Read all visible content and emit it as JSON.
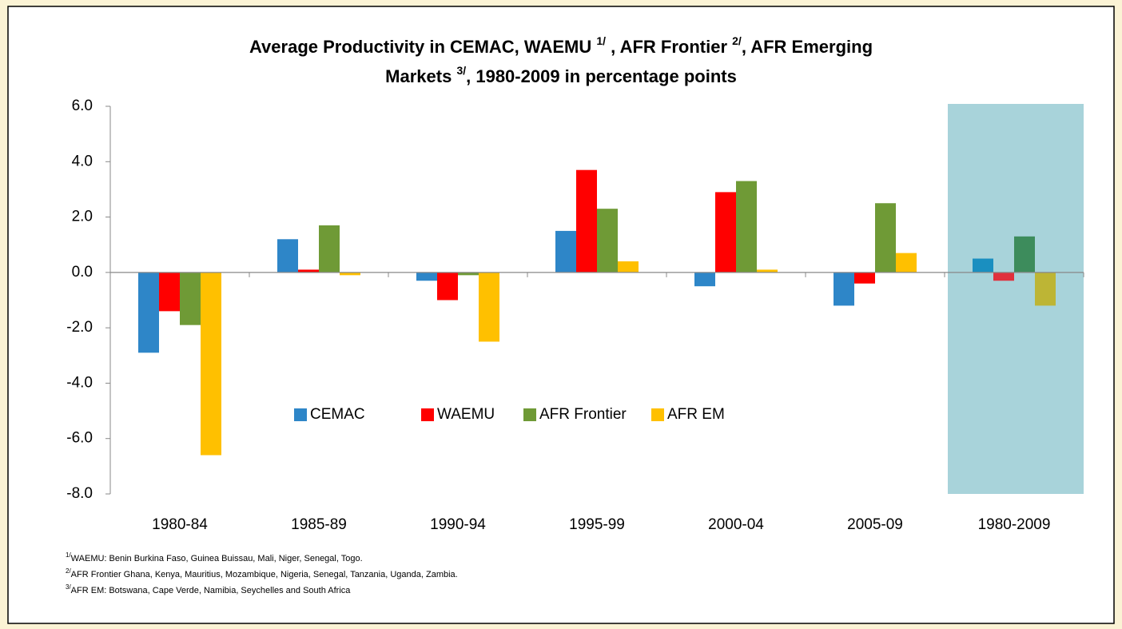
{
  "chart_data": {
    "type": "bar",
    "title_lines": [
      [
        "Average Productivity in CEMAC, WAEMU ",
        "1/",
        " , AFR Frontier ",
        "2/",
        ", AFR Emerging"
      ],
      [
        "Markets ",
        "3/",
        ", 1980-2009 in percentage points"
      ]
    ],
    "categories": [
      "1980-84",
      "1985-89",
      "1990-94",
      "1995-99",
      "2000-04",
      "2005-09",
      "1980-2009"
    ],
    "series": [
      {
        "name": "CEMAC",
        "color": "#2e86c8",
        "highlight_color": "#1a8fc0",
        "values": [
          -2.9,
          1.2,
          -0.3,
          1.5,
          -0.5,
          -1.2,
          0.5
        ]
      },
      {
        "name": "WAEMU",
        "color": "#ff0000",
        "highlight_color": "#e0303c",
        "values": [
          -1.4,
          0.1,
          -1.0,
          3.7,
          2.9,
          -0.4,
          -0.3
        ]
      },
      {
        "name": "AFR Frontier",
        "color": "#6f9a36",
        "highlight_color": "#3d8c5c",
        "values": [
          -1.9,
          1.7,
          -0.1,
          2.3,
          3.3,
          2.5,
          1.3
        ]
      },
      {
        "name": "AFR EM",
        "color": "#ffc000",
        "highlight_color": "#bdb535",
        "values": [
          -6.6,
          -0.1,
          -2.5,
          0.4,
          0.1,
          0.7,
          -1.2
        ]
      }
    ],
    "highlight_category": "1980-2009",
    "highlight_fill": "#a8d3da",
    "ylim": [
      -8,
      6
    ],
    "yticks": [
      {
        "value": -8,
        "label": "-8.0"
      },
      {
        "value": -6,
        "label": "-6.0"
      },
      {
        "value": -4,
        "label": "-4.0"
      },
      {
        "value": -2,
        "label": "-2.0"
      },
      {
        "value": 0,
        "label": "0.0"
      },
      {
        "value": 2,
        "label": "2.0"
      },
      {
        "value": 4,
        "label": "4.0"
      },
      {
        "value": 6,
        "label": "6.0"
      }
    ],
    "legend": "center",
    "notes": [
      {
        "mark": "1/",
        "text": "WAEMU: Benin Burkina Faso, Guinea Buissau, Mali, Niger, Senegal, Togo."
      },
      {
        "mark": "2/",
        "text": "AFR Frontier Ghana, Kenya, Mauritius, Mozambique, Nigeria, Senegal, Tanzania, Uganda, Zambia."
      },
      {
        "mark": "3/",
        "text": "AFR EM: Botswana, Cape Verde, Namibia, Seychelles and South Africa"
      }
    ]
  }
}
